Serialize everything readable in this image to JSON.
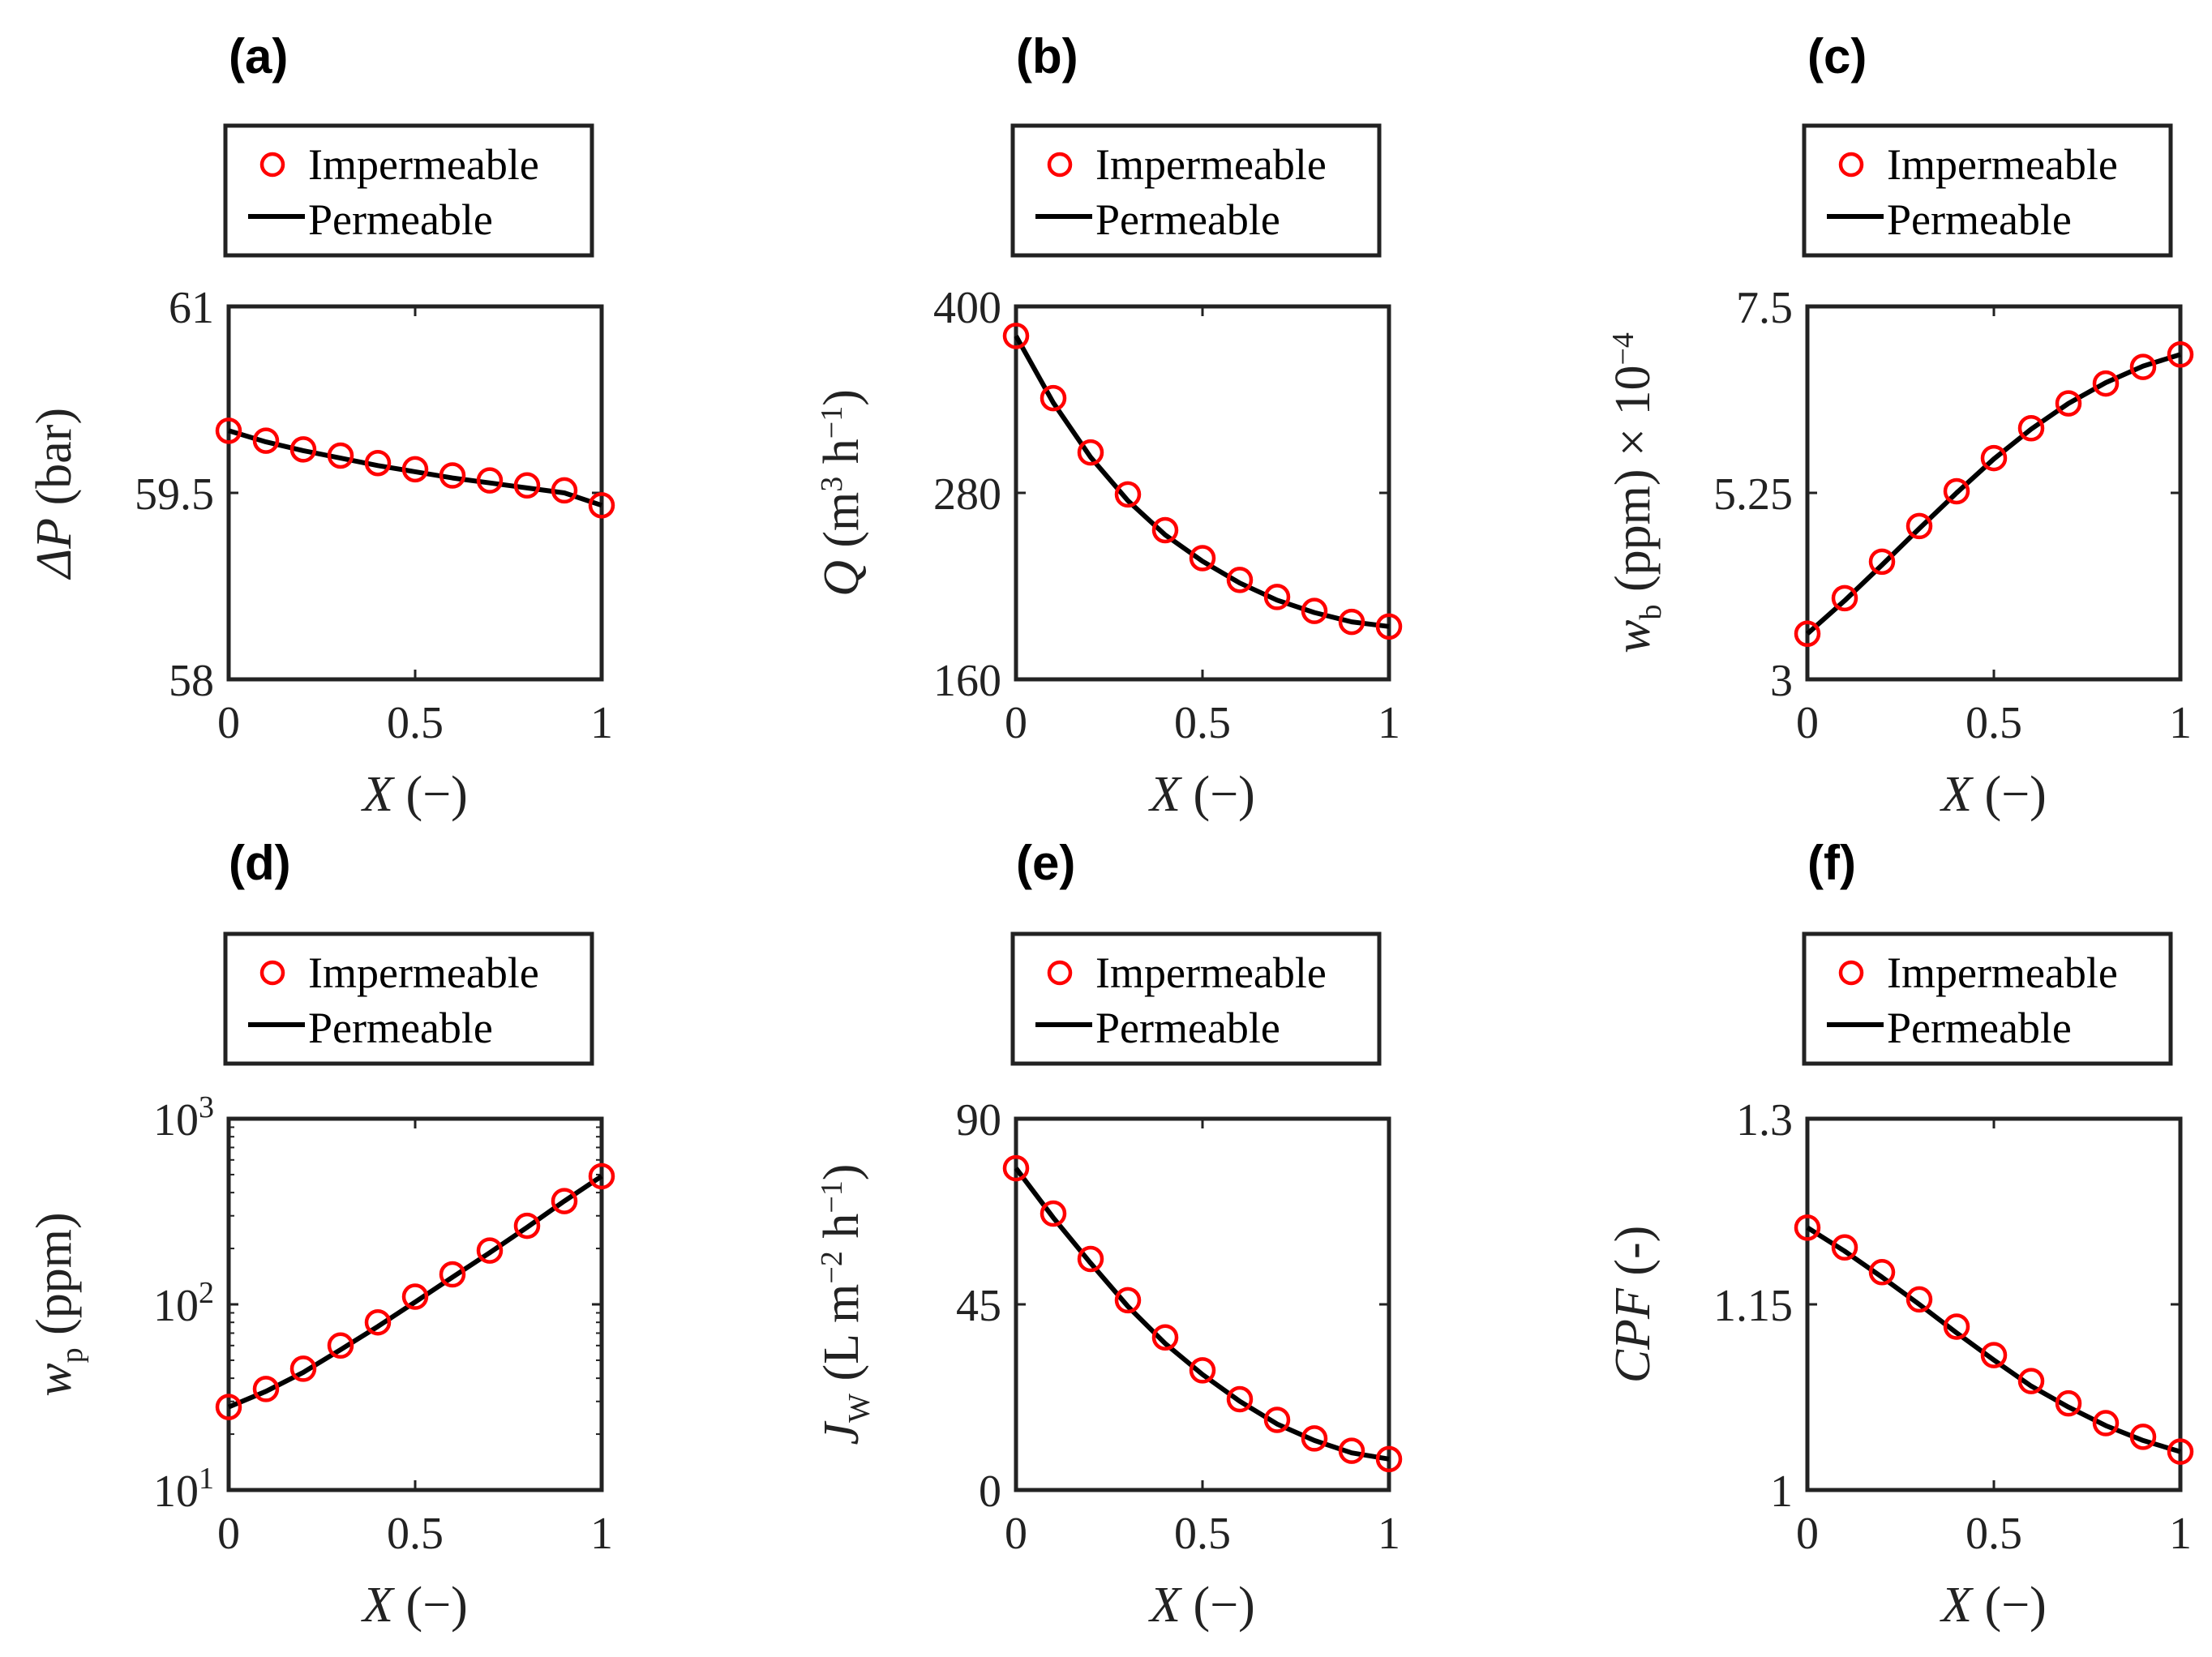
{
  "chart_data": [
    {
      "panel_label": "(a)",
      "type": "line",
      "ylabel": "ΔP (bar)",
      "xlabel": "X (−)",
      "ylim": [
        58,
        61
      ],
      "yscale": "linear",
      "yticks": [
        "58",
        "59.5",
        "61"
      ],
      "xticks": [
        "0",
        "0.5",
        "1"
      ],
      "legend_position": "above",
      "series": [
        {
          "name": "Impermeable",
          "style": "markers",
          "color": "#ff0000",
          "x": [
            0,
            0.1,
            0.2,
            0.3,
            0.4,
            0.5,
            0.6,
            0.7,
            0.8,
            0.9,
            1
          ],
          "y": [
            60.0,
            59.92,
            59.85,
            59.8,
            59.74,
            59.69,
            59.64,
            59.6,
            59.56,
            59.52,
            59.4
          ]
        },
        {
          "name": "Permeable",
          "style": "line",
          "color": "#000000",
          "x": [
            0,
            0.1,
            0.2,
            0.3,
            0.4,
            0.5,
            0.6,
            0.7,
            0.8,
            0.9,
            1
          ],
          "y": [
            60.0,
            59.91,
            59.84,
            59.78,
            59.72,
            59.67,
            59.62,
            59.58,
            59.54,
            59.5,
            59.4
          ]
        }
      ]
    },
    {
      "panel_label": "(b)",
      "type": "line",
      "ylabel": "Q (m³ h⁻¹)",
      "xlabel": "X (−)",
      "ylim": [
        160,
        400
      ],
      "yscale": "linear",
      "yticks": [
        "160",
        "280",
        "400"
      ],
      "xticks": [
        "0",
        "0.5",
        "1"
      ],
      "legend_position": "above",
      "series": [
        {
          "name": "Impermeable",
          "style": "markers",
          "color": "#ff0000",
          "x": [
            0,
            0.1,
            0.2,
            0.3,
            0.4,
            0.5,
            0.6,
            0.7,
            0.8,
            0.9,
            1
          ],
          "y": [
            381,
            341,
            306,
            279,
            256,
            238,
            224,
            213,
            204,
            197,
            194
          ]
        },
        {
          "name": "Permeable",
          "style": "line",
          "color": "#000000",
          "x": [
            0,
            0.1,
            0.2,
            0.3,
            0.4,
            0.5,
            0.6,
            0.7,
            0.8,
            0.9,
            1
          ],
          "y": [
            381,
            338,
            303,
            275,
            253,
            236,
            222,
            211,
            203,
            197,
            194
          ]
        }
      ]
    },
    {
      "panel_label": "(c)",
      "type": "line",
      "ylabel": "w_b (ppm) × 10⁻⁴",
      "xlabel": "X (−)",
      "ylim": [
        3,
        7.5
      ],
      "yscale": "linear",
      "yticks": [
        "3",
        "5.25",
        "7.5"
      ],
      "xticks": [
        "0",
        "0.5",
        "1"
      ],
      "legend_position": "above",
      "series": [
        {
          "name": "Impermeable",
          "style": "markers",
          "color": "#ff0000",
          "x": [
            0,
            0.1,
            0.2,
            0.3,
            0.4,
            0.5,
            0.6,
            0.7,
            0.8,
            0.9,
            1
          ],
          "y": [
            3.55,
            3.98,
            4.42,
            4.85,
            5.27,
            5.67,
            6.03,
            6.33,
            6.57,
            6.77,
            6.92
          ]
        },
        {
          "name": "Permeable",
          "style": "line",
          "color": "#000000",
          "x": [
            0,
            0.1,
            0.2,
            0.3,
            0.4,
            0.5,
            0.6,
            0.7,
            0.8,
            0.9,
            1
          ],
          "y": [
            3.55,
            3.95,
            4.38,
            4.82,
            5.25,
            5.66,
            6.02,
            6.33,
            6.58,
            6.78,
            6.92
          ]
        }
      ]
    },
    {
      "panel_label": "(d)",
      "type": "line",
      "ylabel": "w_p (ppm)",
      "xlabel": "X (−)",
      "ylim": [
        10,
        1000
      ],
      "yscale": "log",
      "yticks": [
        "10¹",
        "10²",
        "10³"
      ],
      "xticks": [
        "0",
        "0.5",
        "1"
      ],
      "legend_position": "above",
      "series": [
        {
          "name": "Impermeable",
          "style": "markers",
          "color": "#ff0000",
          "x": [
            0,
            0.1,
            0.2,
            0.3,
            0.4,
            0.5,
            0.6,
            0.7,
            0.8,
            0.9,
            1
          ],
          "y": [
            28,
            35,
            45,
            60,
            80,
            110,
            145,
            195,
            265,
            360,
            490
          ]
        },
        {
          "name": "Permeable",
          "style": "line",
          "color": "#000000",
          "x": [
            0,
            0.1,
            0.2,
            0.3,
            0.4,
            0.5,
            0.6,
            0.7,
            0.8,
            0.9,
            1
          ],
          "y": [
            28,
            34,
            43,
            57,
            76,
            103,
            140,
            190,
            260,
            360,
            490
          ]
        }
      ]
    },
    {
      "panel_label": "(e)",
      "type": "line",
      "ylabel": "J_W (L m⁻² h⁻¹)",
      "xlabel": "X (−)",
      "ylim": [
        0,
        90
      ],
      "yscale": "linear",
      "yticks": [
        "0",
        "45",
        "90"
      ],
      "xticks": [
        "0",
        "0.5",
        "1"
      ],
      "legend_position": "above",
      "series": [
        {
          "name": "Impermeable",
          "style": "markers",
          "color": "#ff0000",
          "x": [
            0,
            0.1,
            0.2,
            0.3,
            0.4,
            0.5,
            0.6,
            0.7,
            0.8,
            0.9,
            1
          ],
          "y": [
            78,
            67,
            56,
            46,
            37,
            29,
            22,
            17,
            12.5,
            9.5,
            7.5
          ]
        },
        {
          "name": "Permeable",
          "style": "line",
          "color": "#000000",
          "x": [
            0,
            0.1,
            0.2,
            0.3,
            0.4,
            0.5,
            0.6,
            0.7,
            0.8,
            0.9,
            1
          ],
          "y": [
            78,
            66,
            55,
            44.5,
            35.5,
            28,
            21.5,
            16,
            12,
            9,
            7.5
          ]
        }
      ]
    },
    {
      "panel_label": "(f)",
      "type": "line",
      "ylabel": "CPF (-)",
      "xlabel": "X (−)",
      "ylim": [
        1,
        1.3
      ],
      "yscale": "linear",
      "yticks": [
        "1",
        "1.15",
        "1.3"
      ],
      "xticks": [
        "0",
        "0.5",
        "1"
      ],
      "legend_position": "above",
      "series": [
        {
          "name": "Impermeable",
          "style": "markers",
          "color": "#ff0000",
          "x": [
            0,
            0.1,
            0.2,
            0.3,
            0.4,
            0.5,
            0.6,
            0.7,
            0.8,
            0.9,
            1
          ],
          "y": [
            1.212,
            1.196,
            1.176,
            1.154,
            1.132,
            1.109,
            1.088,
            1.07,
            1.054,
            1.043,
            1.031
          ]
        },
        {
          "name": "Permeable",
          "style": "line",
          "color": "#000000",
          "x": [
            0,
            0.1,
            0.2,
            0.3,
            0.4,
            0.5,
            0.6,
            0.7,
            0.8,
            0.9,
            1
          ],
          "y": [
            1.212,
            1.193,
            1.172,
            1.15,
            1.127,
            1.105,
            1.084,
            1.067,
            1.052,
            1.04,
            1.031
          ]
        }
      ]
    }
  ]
}
